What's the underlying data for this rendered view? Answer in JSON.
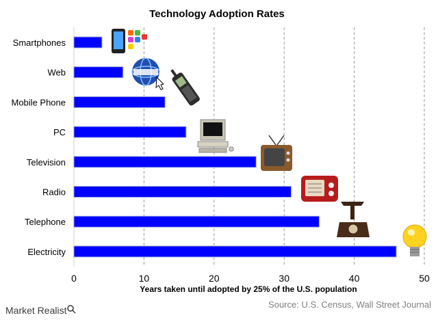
{
  "chart_data": {
    "type": "bar",
    "orientation": "horizontal",
    "title": "Technology Adoption Rates",
    "xlabel": "Years taken until adopted by 25% of the U.S. population",
    "categories": [
      "Smartphones",
      "Web",
      "Mobile Phone",
      "PC",
      "Television",
      "Radio",
      "Telephone",
      "Electricity"
    ],
    "values": [
      4,
      7,
      13,
      16,
      26,
      31,
      35,
      46
    ],
    "xlim": [
      0,
      50
    ],
    "xticks": [
      0,
      10,
      20,
      30,
      40,
      50
    ],
    "grid": true,
    "bar_color": "#0000ff",
    "bar_edge_color": "#9aa8d8"
  },
  "icons": [
    "smartphone-icon",
    "globe-icon",
    "mobile-phone-icon",
    "pc-icon",
    "television-icon",
    "radio-icon",
    "telephone-icon",
    "lightbulb-icon"
  ],
  "source_note": "Source: U.S. Census, Wall Street Journal",
  "brand": "Market Realist"
}
